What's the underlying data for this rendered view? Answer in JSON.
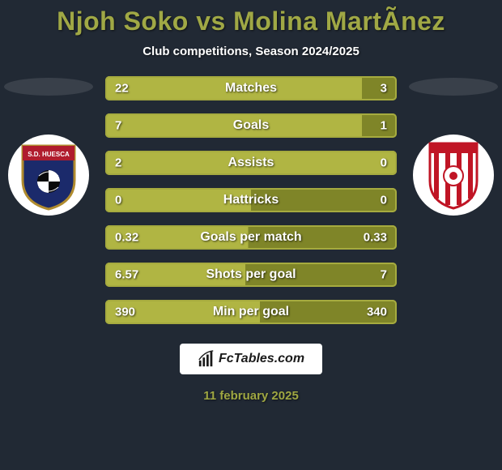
{
  "title": {
    "player1": "Njoh Soko",
    "vs": "vs",
    "player2": "Molina MartÃ­nez",
    "color": "#a0a845",
    "fontsize": 32
  },
  "subtitle": {
    "text": "Club competitions, Season 2024/2025",
    "fontsize": 15
  },
  "shadow_color": "#39404a",
  "crest_bg": "#ffffff",
  "bars": {
    "track_color": "#7f8528",
    "fill_color": "#b0b543",
    "border_color": "#a6ab3f",
    "label_fontsize": 16,
    "value_fontsize": 15,
    "items": [
      {
        "label": "Matches",
        "left": "22",
        "right": "3",
        "left_pct": 88,
        "right_pct": 12
      },
      {
        "label": "Goals",
        "left": "7",
        "right": "1",
        "left_pct": 88,
        "right_pct": 12
      },
      {
        "label": "Assists",
        "left": "2",
        "right": "0",
        "left_pct": 100,
        "right_pct": 0
      },
      {
        "label": "Hattricks",
        "left": "0",
        "right": "0",
        "left_pct": 50,
        "right_pct": 50
      },
      {
        "label": "Goals per match",
        "left": "0.32",
        "right": "0.33",
        "left_pct": 49,
        "right_pct": 51
      },
      {
        "label": "Shots per goal",
        "left": "6.57",
        "right": "7",
        "left_pct": 48,
        "right_pct": 52
      },
      {
        "label": "Min per goal",
        "left": "390",
        "right": "340",
        "left_pct": 53,
        "right_pct": 47
      }
    ]
  },
  "footer": {
    "brand": "FcTables.com",
    "fontsize": 16
  },
  "date": {
    "text": "11 february 2025",
    "color": "#9fa742",
    "fontsize": 15
  },
  "crests": {
    "left": {
      "name": "SD Huesca",
      "shield_fill": "#1b2a6b",
      "shield_stroke": "#b08b2e",
      "band_color": "#b01c2e",
      "text": "S.D. HUESCA"
    },
    "right": {
      "name": "Granada CF",
      "outline": "#c01525",
      "stripes": [
        "#c01525",
        "#ffffff"
      ]
    }
  }
}
